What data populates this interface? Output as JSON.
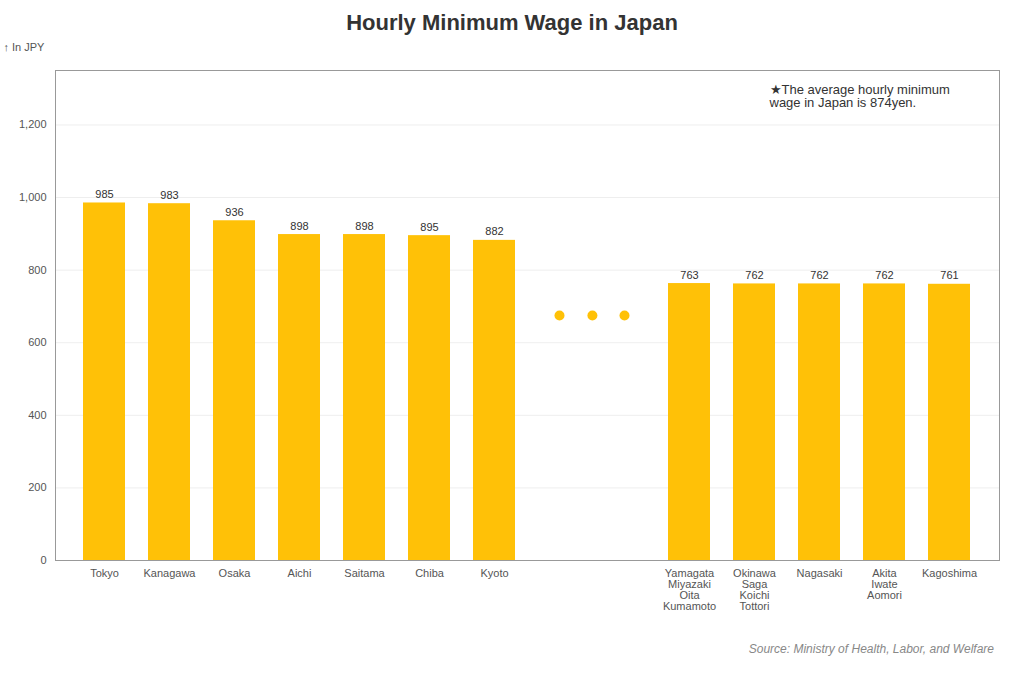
{
  "chart_data": {
    "type": "bar",
    "title": "Hourly Minimum Wage in Japan",
    "ylabel": "In JPY",
    "source": "Source: Ministry of Health, Labor, and Welfare",
    "annotation": "★The average hourly minimum\nwage in Japan is 874yen.",
    "categories": [
      "Tokyo",
      "Kanagawa",
      "Osaka",
      "Aichi",
      "Saitama",
      "Chiba",
      "Kyoto",
      null,
      null,
      "Yamagata\nMiyazaki\nOita\nKumamoto",
      "Okinawa\nSaga\nKoichi\nTottori",
      "Nagasaki",
      "Akita\nIwate\nAomori",
      "Kagoshima"
    ],
    "values": [
      985,
      983,
      936,
      898,
      898,
      895,
      882,
      null,
      null,
      763,
      762,
      762,
      762,
      761
    ],
    "color": "#FFC107",
    "ylim": [
      0,
      1350
    ],
    "yticks": [
      0,
      200,
      400,
      600,
      800,
      {
        "value": 1000,
        "label": "1,000"
      },
      {
        "value": 1200,
        "label": "1,200"
      }
    ],
    "grid": true,
    "data_labels": true
  }
}
